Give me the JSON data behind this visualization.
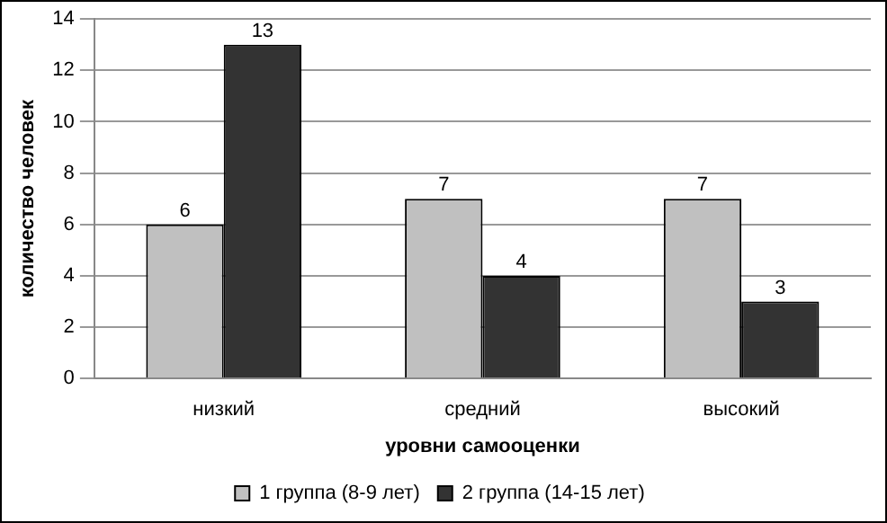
{
  "chart_data": {
    "type": "bar",
    "xlabel": "уровни самооценки",
    "ylabel": "количество человек",
    "categories": [
      "низкий",
      "средний",
      "высокий"
    ],
    "series": [
      {
        "name": "1 группа (8-9 лет)",
        "color": "#c0c0c0",
        "values": [
          6,
          7,
          7
        ]
      },
      {
        "name": "2 группа (14-15 лет)",
        "color": "#333333",
        "values": [
          13,
          4,
          3
        ]
      }
    ],
    "ylim": [
      0,
      14
    ],
    "yticks": [
      0,
      2,
      4,
      6,
      8,
      10,
      12,
      14
    ],
    "grid": "y",
    "legend": "bottom",
    "data_labels": true
  }
}
